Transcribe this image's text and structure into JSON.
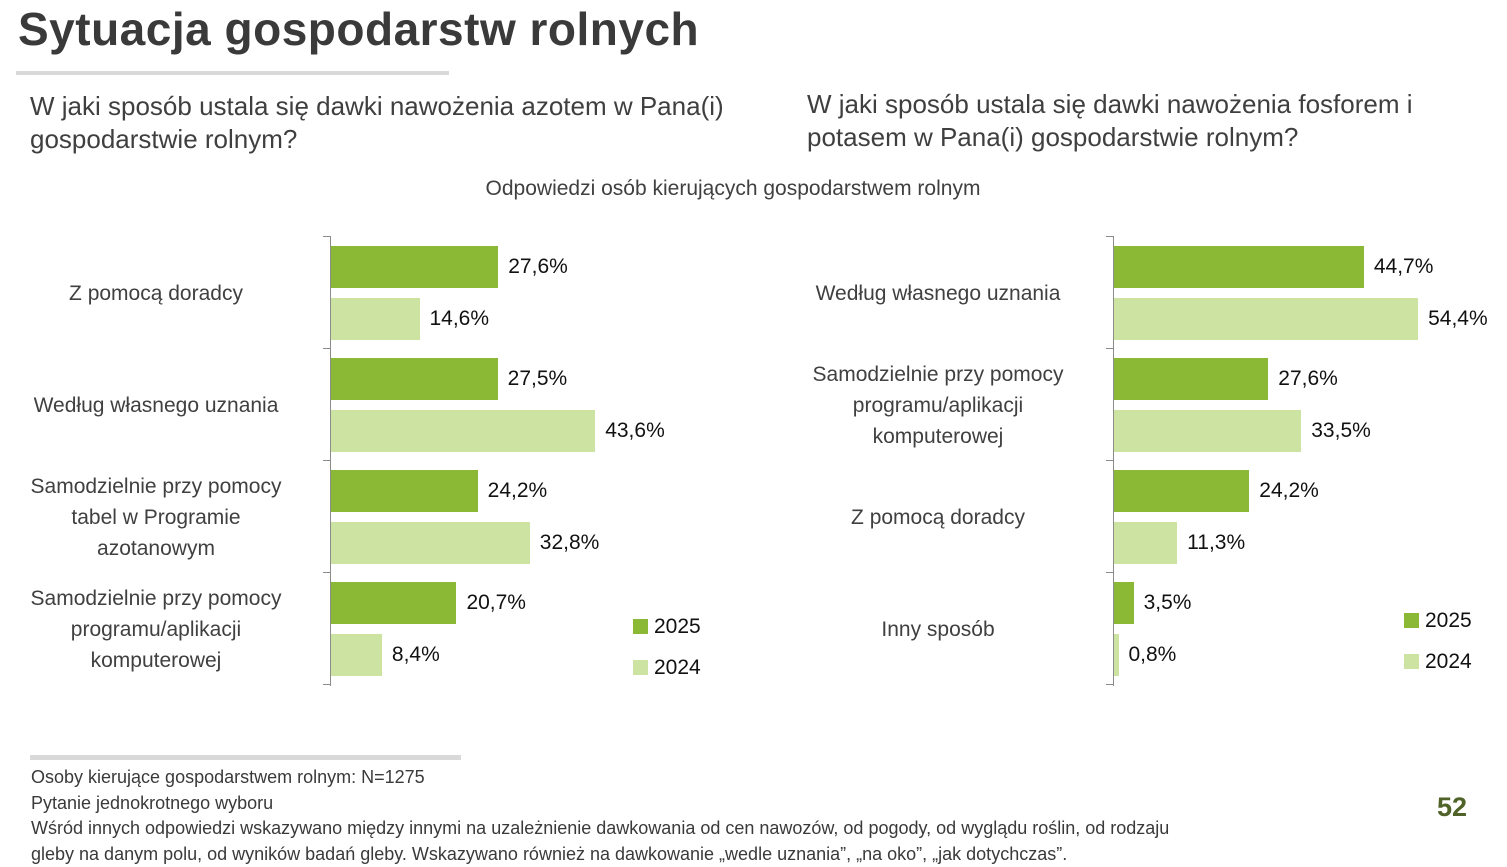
{
  "title": "Sytuacja gospodarstw rolnych",
  "subtitle": "Odpowiedzi osób kierujących gospodarstwem rolnym",
  "colors": {
    "2025": "#8bb835",
    "2024": "#cde3a1",
    "page_number": "#4f6228"
  },
  "chart_data": [
    {
      "type": "bar",
      "orientation": "horizontal",
      "title": "W jaki sposób ustala się dawki nawożenia azotem w Pana(i) gospodarstwie rolnym?",
      "categories": [
        [
          "Z pomocą doradcy"
        ],
        [
          "Według własnego uznania"
        ],
        [
          "Samodzielnie przy pomocy",
          "tabel w Programie",
          "azotanowym"
        ],
        [
          "Samodzielnie przy pomocy",
          "programu/aplikacji",
          "komputerowej"
        ]
      ],
      "series": [
        {
          "name": "2025",
          "values": [
            27.6,
            27.5,
            24.2,
            20.7
          ],
          "labels": [
            "27,6%",
            "27,5%",
            "24,2%",
            "20,7%"
          ]
        },
        {
          "name": "2024",
          "values": [
            14.6,
            43.6,
            32.8,
            8.4
          ],
          "labels": [
            "14,6%",
            "43,6%",
            "32,8%",
            "8,4%"
          ]
        }
      ],
      "unit": "%",
      "xlim": [
        0,
        60
      ],
      "grid": false,
      "legend": "bottom-right"
    },
    {
      "type": "bar",
      "orientation": "horizontal",
      "title": "W jaki sposób ustala się dawki nawożenia fosforem i potasem w Pana(i) gospodarstwie rolnym?",
      "categories": [
        [
          "Według własnego uznania"
        ],
        [
          "Samodzielnie przy pomocy",
          "programu/aplikacji",
          "komputerowej"
        ],
        [
          "Z pomocą doradcy"
        ],
        [
          "Inny sposób"
        ]
      ],
      "series": [
        {
          "name": "2025",
          "values": [
            44.7,
            27.6,
            24.2,
            3.5
          ],
          "labels": [
            "44,7%",
            "27,6%",
            "24,2%",
            "3,5%"
          ]
        },
        {
          "name": "2024",
          "values": [
            54.4,
            33.5,
            11.3,
            0.8
          ],
          "labels": [
            "54,4%",
            "33,5%",
            "11,3%",
            "0,8%"
          ]
        }
      ],
      "unit": "%",
      "xlim": [
        0,
        60
      ],
      "grid": false,
      "legend": "bottom-right"
    }
  ],
  "footer": {
    "lines": [
      "Osoby kierujące gospodarstwem rolnym: N=1275",
      "Pytanie jednokrotnego wyboru",
      "Wśród innych odpowiedzi wskazywano między innymi na uzależnienie dawkowania od cen nawozów, od pogody, od wyglądu roślin, od rodzaju",
      "gleby na danym polu, od wyników badań gleby. Wskazywano również na dawkowanie „wedle uznania”, „na oko”, „jak dotychczas”."
    ]
  },
  "page_number": "52"
}
